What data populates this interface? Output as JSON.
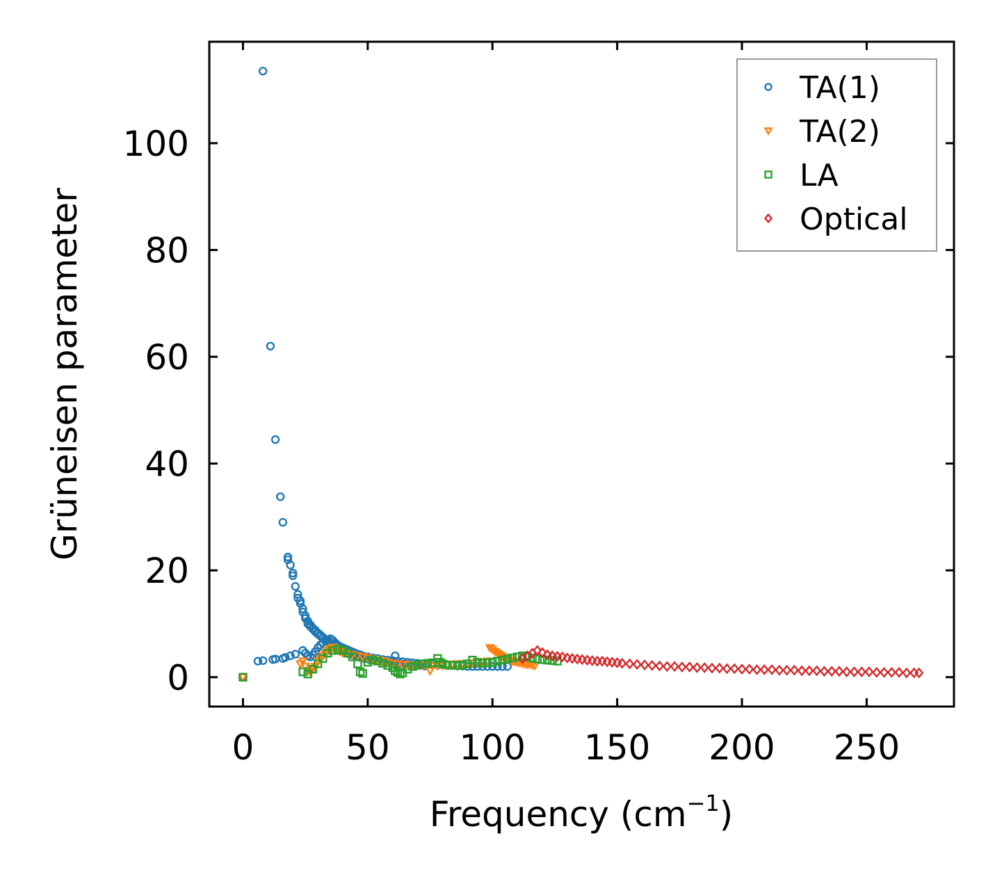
{
  "chart_data": {
    "type": "scatter",
    "title": "",
    "xlabel": "Frequency (cm",
    "xlabel_sup": "−1",
    "xlabel_close": ")",
    "ylabel": "Grüneisen parameter",
    "xlim": [
      -13.5,
      285
    ],
    "ylim": [
      -5.5,
      119
    ],
    "xticks": [
      0,
      50,
      100,
      150,
      200,
      250
    ],
    "yticks": [
      0,
      20,
      40,
      60,
      80,
      100
    ],
    "legend_position": "top-right",
    "series": [
      {
        "name": "TA(1)",
        "marker": "circle",
        "color": "#1f77b4",
        "points": [
          [
            0,
            0
          ],
          [
            6,
            3.0
          ],
          [
            8,
            3.1
          ],
          [
            8,
            113.5
          ],
          [
            11,
            62.0
          ],
          [
            12,
            3.3
          ],
          [
            13,
            3.4
          ],
          [
            13,
            44.5
          ],
          [
            15,
            33.8
          ],
          [
            16,
            29.0
          ],
          [
            16,
            3.5
          ],
          [
            17,
            3.7
          ],
          [
            18,
            22.5
          ],
          [
            18,
            22.0
          ],
          [
            19,
            21.0
          ],
          [
            19,
            4.0
          ],
          [
            20,
            19.5
          ],
          [
            20,
            19.0
          ],
          [
            21,
            17.0
          ],
          [
            21,
            4.3
          ],
          [
            22,
            15.5
          ],
          [
            22,
            14.8
          ],
          [
            23,
            14.3
          ],
          [
            23,
            13.8
          ],
          [
            24,
            12.8
          ],
          [
            24,
            12.2
          ],
          [
            25,
            11.5
          ],
          [
            25,
            11.0
          ],
          [
            26,
            10.5
          ],
          [
            26,
            10.0
          ],
          [
            27,
            9.8
          ],
          [
            27,
            9.5
          ],
          [
            28,
            9.2
          ],
          [
            28,
            9.0
          ],
          [
            29,
            8.8
          ],
          [
            29,
            8.5
          ],
          [
            30,
            8.3
          ],
          [
            30,
            8.1
          ],
          [
            31,
            7.9
          ],
          [
            31,
            7.7
          ],
          [
            32,
            7.5
          ],
          [
            32,
            7.3
          ],
          [
            33,
            7.1
          ],
          [
            33,
            6.9
          ],
          [
            34,
            6.7
          ],
          [
            35,
            6.5
          ],
          [
            36,
            6.3
          ],
          [
            37,
            6.1
          ],
          [
            38,
            5.9
          ],
          [
            39,
            5.7
          ],
          [
            40,
            5.5
          ],
          [
            41,
            5.3
          ],
          [
            42,
            5.1
          ],
          [
            43,
            4.9
          ],
          [
            44,
            4.7
          ],
          [
            45,
            4.5
          ],
          [
            46,
            4.3
          ],
          [
            47,
            4.2
          ],
          [
            48,
            4.0
          ],
          [
            50,
            3.8
          ],
          [
            52,
            3.6
          ],
          [
            54,
            3.5
          ],
          [
            56,
            3.3
          ],
          [
            58,
            3.2
          ],
          [
            60,
            3.1
          ],
          [
            61,
            4.0
          ],
          [
            62,
            3.0
          ],
          [
            64,
            2.9
          ],
          [
            66,
            2.8
          ],
          [
            68,
            2.7
          ],
          [
            70,
            2.6
          ],
          [
            72,
            2.5
          ],
          [
            74,
            2.4
          ],
          [
            76,
            2.4
          ],
          [
            78,
            2.3
          ],
          [
            80,
            2.3
          ],
          [
            82,
            2.2
          ],
          [
            84,
            2.2
          ],
          [
            86,
            2.1
          ],
          [
            88,
            2.1
          ],
          [
            90,
            2.0
          ],
          [
            92,
            2.0
          ],
          [
            94,
            2.0
          ],
          [
            96,
            2.0
          ],
          [
            98,
            2.0
          ],
          [
            100,
            2.0
          ],
          [
            102,
            2.0
          ],
          [
            104,
            2.0
          ],
          [
            106,
            2.0
          ],
          [
            24,
            5.0
          ],
          [
            25,
            4.5
          ],
          [
            26,
            4.0
          ],
          [
            27,
            3.8
          ],
          [
            28,
            4.2
          ],
          [
            29,
            4.8
          ],
          [
            30,
            5.5
          ],
          [
            31,
            6.0
          ],
          [
            32,
            6.5
          ],
          [
            33,
            6.8
          ],
          [
            34,
            7.0
          ],
          [
            35,
            7.2
          ],
          [
            36,
            6.9
          ],
          [
            37,
            6.4
          ],
          [
            38,
            6.0
          ],
          [
            39,
            5.6
          ],
          [
            40,
            5.2
          ],
          [
            41,
            4.9
          ],
          [
            42,
            4.6
          ],
          [
            43,
            4.4
          ],
          [
            44,
            4.2
          ],
          [
            45,
            4.0
          ],
          [
            46,
            3.9
          ],
          [
            47,
            3.7
          ],
          [
            48,
            3.6
          ],
          [
            49,
            3.5
          ],
          [
            50,
            3.4
          ],
          [
            51,
            3.3
          ],
          [
            52,
            3.2
          ],
          [
            53,
            3.1
          ],
          [
            55,
            3.0
          ],
          [
            57,
            2.9
          ],
          [
            59,
            2.8
          ],
          [
            61,
            2.7
          ],
          [
            63,
            2.6
          ],
          [
            65,
            2.5
          ],
          [
            67,
            2.4
          ],
          [
            69,
            2.3
          ],
          [
            71,
            2.2
          ],
          [
            73,
            2.1
          ]
        ]
      },
      {
        "name": "TA(2)",
        "marker": "triangle-down",
        "color": "#ff7f0e",
        "points": [
          [
            0,
            0
          ],
          [
            23,
            2.5
          ],
          [
            24,
            3.0
          ],
          [
            25,
            2.0
          ],
          [
            26,
            1.2
          ],
          [
            27,
            1.0
          ],
          [
            28,
            1.5
          ],
          [
            29,
            2.0
          ],
          [
            30,
            3.0
          ],
          [
            31,
            3.5
          ],
          [
            32,
            4.0
          ],
          [
            33,
            4.5
          ],
          [
            34,
            5.0
          ],
          [
            35,
            5.3
          ],
          [
            36,
            5.6
          ],
          [
            37,
            5.4
          ],
          [
            38,
            5.0
          ],
          [
            39,
            4.8
          ],
          [
            40,
            4.6
          ],
          [
            42,
            4.4
          ],
          [
            44,
            4.2
          ],
          [
            46,
            4.0
          ],
          [
            48,
            3.8
          ],
          [
            50,
            3.6
          ],
          [
            52,
            3.4
          ],
          [
            54,
            3.2
          ],
          [
            56,
            3.0
          ],
          [
            58,
            2.8
          ],
          [
            60,
            2.6
          ],
          [
            62,
            2.5
          ],
          [
            64,
            2.4
          ],
          [
            66,
            2.3
          ],
          [
            68,
            2.3
          ],
          [
            70,
            2.2
          ],
          [
            72,
            2.2
          ],
          [
            74,
            2.2
          ],
          [
            75,
            1.2
          ],
          [
            76,
            2.1
          ],
          [
            78,
            2.1
          ],
          [
            80,
            2.2
          ],
          [
            82,
            2.3
          ],
          [
            84,
            2.4
          ],
          [
            86,
            2.5
          ],
          [
            88,
            2.5
          ],
          [
            90,
            2.6
          ],
          [
            92,
            2.6
          ],
          [
            94,
            2.7
          ],
          [
            96,
            2.8
          ],
          [
            98,
            3.0
          ],
          [
            99,
            5.5
          ],
          [
            100,
            5.2
          ],
          [
            101,
            4.8
          ],
          [
            102,
            4.5
          ],
          [
            103,
            4.2
          ],
          [
            104,
            3.9
          ],
          [
            105,
            3.6
          ],
          [
            106,
            3.4
          ],
          [
            107,
            3.2
          ],
          [
            108,
            3.0
          ],
          [
            109,
            2.9
          ],
          [
            110,
            2.8
          ],
          [
            111,
            2.7
          ],
          [
            112,
            2.6
          ],
          [
            113,
            2.5
          ],
          [
            114,
            2.4
          ],
          [
            115,
            2.4
          ],
          [
            116,
            2.3
          ],
          [
            117,
            2.2
          ]
        ]
      },
      {
        "name": "LA",
        "marker": "square",
        "color": "#2ca02c",
        "points": [
          [
            0,
            0
          ],
          [
            24,
            1.0
          ],
          [
            26,
            0.6
          ],
          [
            28,
            1.5
          ],
          [
            30,
            2.5
          ],
          [
            32,
            3.5
          ],
          [
            34,
            4.5
          ],
          [
            36,
            5.0
          ],
          [
            38,
            5.2
          ],
          [
            40,
            5.0
          ],
          [
            42,
            4.5
          ],
          [
            44,
            3.8
          ],
          [
            46,
            2.5
          ],
          [
            47,
            1.0
          ],
          [
            48,
            0.7
          ],
          [
            50,
            2.8
          ],
          [
            52,
            3.2
          ],
          [
            54,
            3.0
          ],
          [
            56,
            2.6
          ],
          [
            58,
            2.2
          ],
          [
            60,
            1.8
          ],
          [
            61,
            1.2
          ],
          [
            62,
            0.9
          ],
          [
            63,
            0.6
          ],
          [
            64,
            0.8
          ],
          [
            66,
            1.5
          ],
          [
            68,
            2.0
          ],
          [
            70,
            2.3
          ],
          [
            72,
            2.5
          ],
          [
            74,
            2.6
          ],
          [
            76,
            2.7
          ],
          [
            78,
            3.5
          ],
          [
            79,
            2.8
          ],
          [
            80,
            2.5
          ],
          [
            82,
            2.3
          ],
          [
            84,
            2.2
          ],
          [
            86,
            2.2
          ],
          [
            88,
            2.3
          ],
          [
            90,
            2.5
          ],
          [
            92,
            3.2
          ],
          [
            94,
            2.8
          ],
          [
            96,
            2.6
          ],
          [
            98,
            2.7
          ],
          [
            100,
            2.8
          ],
          [
            102,
            3.0
          ],
          [
            104,
            3.2
          ],
          [
            106,
            3.4
          ],
          [
            108,
            3.6
          ],
          [
            110,
            3.8
          ],
          [
            112,
            4.0
          ],
          [
            114,
            3.8
          ],
          [
            116,
            3.6
          ],
          [
            118,
            3.4
          ],
          [
            120,
            3.3
          ],
          [
            122,
            3.2
          ],
          [
            124,
            3.1
          ],
          [
            126,
            3.0
          ]
        ]
      },
      {
        "name": "Optical",
        "marker": "diamond",
        "color": "#d62728",
        "points": [
          [
            112,
            3.5
          ],
          [
            114,
            4.0
          ],
          [
            116,
            4.5
          ],
          [
            118,
            5.0
          ],
          [
            120,
            4.6
          ],
          [
            122,
            4.2
          ],
          [
            124,
            4.0
          ],
          [
            126,
            3.9
          ],
          [
            128,
            3.8
          ],
          [
            130,
            3.6
          ],
          [
            132,
            3.5
          ],
          [
            134,
            3.4
          ],
          [
            136,
            3.3
          ],
          [
            138,
            3.2
          ],
          [
            140,
            3.1
          ],
          [
            142,
            3.0
          ],
          [
            144,
            3.0
          ],
          [
            146,
            2.9
          ],
          [
            148,
            2.8
          ],
          [
            150,
            2.7
          ],
          [
            152,
            2.6
          ],
          [
            155,
            2.5
          ],
          [
            158,
            2.4
          ],
          [
            161,
            2.3
          ],
          [
            164,
            2.2
          ],
          [
            167,
            2.1
          ],
          [
            170,
            2.0
          ],
          [
            173,
            2.0
          ],
          [
            176,
            1.9
          ],
          [
            179,
            1.9
          ],
          [
            182,
            1.8
          ],
          [
            185,
            1.8
          ],
          [
            188,
            1.7
          ],
          [
            191,
            1.7
          ],
          [
            194,
            1.6
          ],
          [
            197,
            1.6
          ],
          [
            200,
            1.5
          ],
          [
            203,
            1.5
          ],
          [
            206,
            1.4
          ],
          [
            209,
            1.4
          ],
          [
            212,
            1.4
          ],
          [
            215,
            1.3
          ],
          [
            218,
            1.3
          ],
          [
            221,
            1.3
          ],
          [
            224,
            1.2
          ],
          [
            227,
            1.2
          ],
          [
            230,
            1.2
          ],
          [
            233,
            1.1
          ],
          [
            236,
            1.1
          ],
          [
            239,
            1.1
          ],
          [
            242,
            1.0
          ],
          [
            245,
            1.0
          ],
          [
            248,
            1.0
          ],
          [
            251,
            1.0
          ],
          [
            254,
            0.9
          ],
          [
            257,
            0.9
          ],
          [
            260,
            0.9
          ],
          [
            263,
            0.9
          ],
          [
            266,
            0.8
          ],
          [
            269,
            0.8
          ],
          [
            271,
            0.8
          ]
        ]
      }
    ]
  }
}
